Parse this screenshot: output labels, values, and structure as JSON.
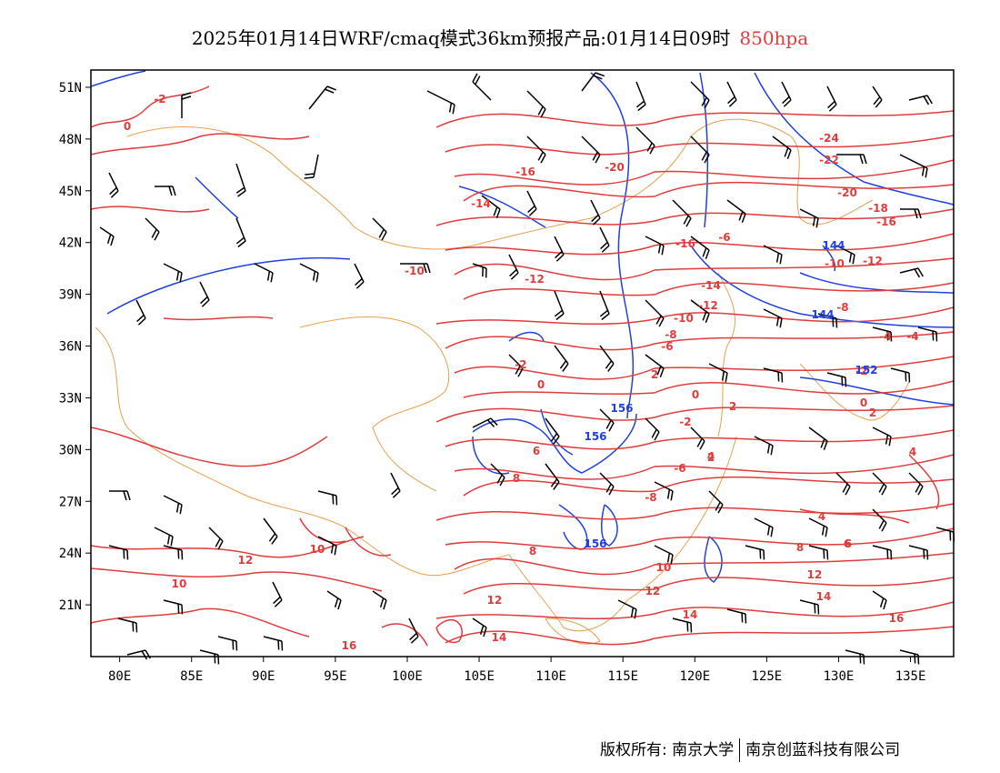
{
  "title": {
    "main": "2025年01月14日WRF/cmaq模式36km预报产品:01月14日09时",
    "level": "850hpa",
    "level_color": "#e03c3c"
  },
  "map": {
    "lon_range": [
      78,
      138
    ],
    "lat_range": [
      18,
      52
    ],
    "lon_ticks": [
      "80E",
      "85E",
      "90E",
      "95E",
      "100E",
      "105E",
      "110E",
      "115E",
      "120E",
      "125E",
      "130E",
      "135E"
    ],
    "lat_ticks": [
      "51N",
      "48N",
      "45N",
      "42N",
      "39N",
      "36N",
      "33N",
      "30N",
      "27N",
      "24N",
      "21N"
    ],
    "temperature_color": "#e03c3c",
    "geopotential_color": "#2040e0",
    "border_color": "#e8a050",
    "wind_barb_color": "#000000",
    "temperature_labels": [
      "-2",
      "0",
      "-16",
      "-20",
      "-24",
      "-22",
      "-14",
      "-20",
      "-18",
      "-16",
      "-10",
      "-16",
      "-6",
      "-12",
      "-10",
      "-12",
      "-14",
      "-8",
      "-10",
      "-12",
      "-8",
      "-6",
      "-4",
      "-2",
      "-2",
      "0",
      "2",
      "-6",
      "-8",
      "-2",
      "0",
      "2",
      "0",
      "2",
      "4",
      "2",
      "6",
      "8",
      "4",
      "6",
      "8",
      "8",
      "10",
      "12",
      "12",
      "14",
      "14",
      "10",
      "12",
      "10",
      "12",
      "14",
      "16",
      "16",
      "6",
      "4",
      "-4"
    ],
    "geopotential_labels": [
      "144",
      "144",
      "152",
      "156",
      "156",
      "156"
    ]
  },
  "footer": {
    "copyright": "版权所有: 南京大学",
    "company": "南京创蓝科技有限公司"
  }
}
